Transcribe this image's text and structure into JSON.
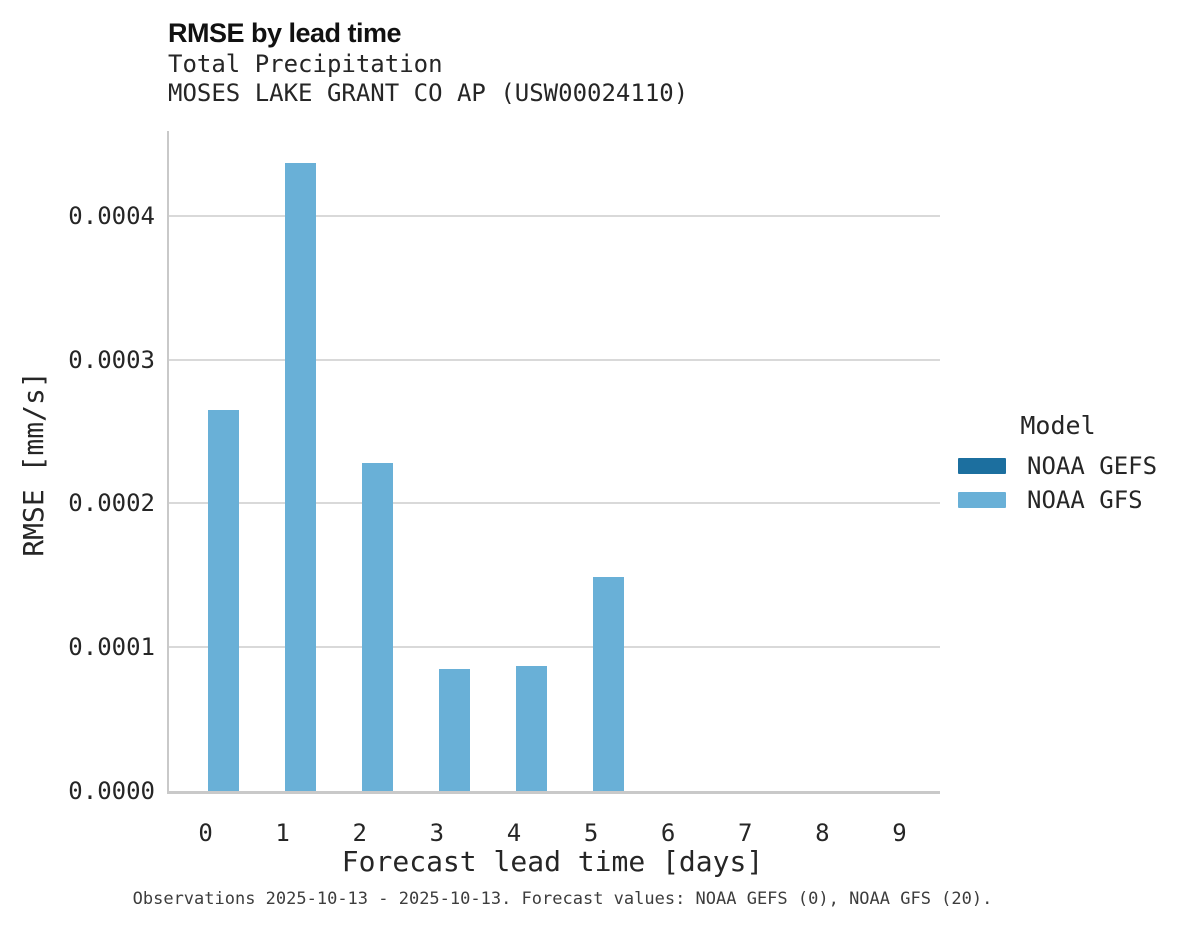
{
  "header": {
    "title": "RMSE by lead time",
    "subtitle_line1": "Total Precipitation",
    "subtitle_line2": "MOSES LAKE GRANT CO AP (USW00024110)"
  },
  "legend": {
    "title": "Model",
    "position": "right"
  },
  "caption": "Observations 2025-10-13 - 2025-10-13. Forecast values: NOAA GEFS (0), NOAA GFS (20).",
  "colors": {
    "noaa_gefs": "#1c6f9f",
    "noaa_gfs": "#69b0d7",
    "gridline": "#d9d9d9",
    "spine": "#c9c9c9",
    "background": "#ffffff"
  },
  "chart_data": {
    "type": "bar",
    "title": "RMSE by lead time",
    "subtitle": [
      "Total Precipitation",
      "MOSES LAKE GRANT CO AP (USW00024110)"
    ],
    "xlabel": "Forecast lead time [days]",
    "ylabel": "RMSE [mm/s]",
    "categories": [
      "0",
      "1",
      "2",
      "3",
      "4",
      "5",
      "6",
      "7",
      "8",
      "9"
    ],
    "series": [
      {
        "name": "NOAA GEFS",
        "color": "#1c6f9f",
        "values": [
          null,
          null,
          null,
          null,
          null,
          null,
          null,
          null,
          null,
          null
        ]
      },
      {
        "name": "NOAA GFS",
        "color": "#69b0d7",
        "values": [
          0.000265,
          0.000437,
          0.000228,
          8.5e-05,
          8.7e-05,
          0.000149,
          null,
          null,
          null,
          null
        ]
      }
    ],
    "ylim": [
      0,
      0.000459
    ],
    "yticks": [
      {
        "value": 0.0,
        "label": "0.0000"
      },
      {
        "value": 0.0001,
        "label": "0.0001"
      },
      {
        "value": 0.0002,
        "label": "0.0002"
      },
      {
        "value": 0.0003,
        "label": "0.0003"
      },
      {
        "value": 0.0004,
        "label": "0.0004"
      }
    ],
    "grid": "horizontal",
    "legend_title": "Model",
    "legend_position": "right",
    "caption": "Observations 2025-10-13 - 2025-10-13. Forecast values: NOAA GEFS (0), NOAA GFS (20)."
  }
}
